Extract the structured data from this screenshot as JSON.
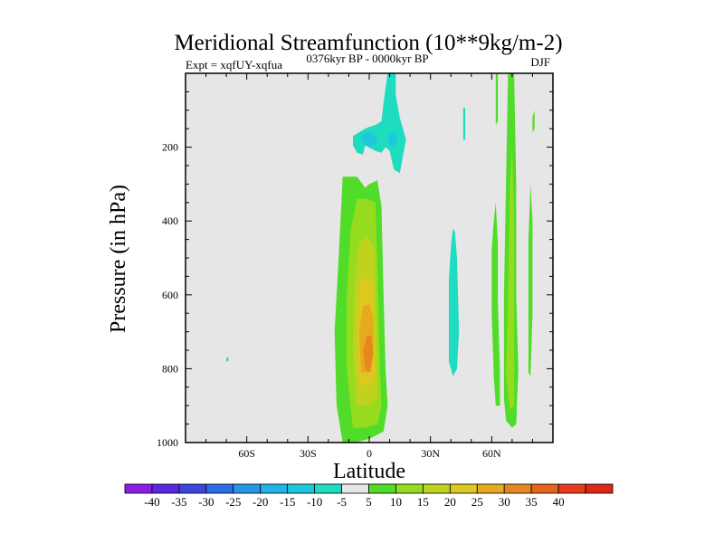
{
  "chart_data": {
    "type": "filled-contour",
    "title": "Meridional Streamfunction (10**9kg/m-2)",
    "subtitle_left": "Expt = xqfUY-xqfua",
    "subtitle_center": "0376kyr BP - 0000kyr BP",
    "subtitle_right": "DJF",
    "xlabel": "Latitude",
    "ylabel": "Pressure (in hPa)",
    "x_range": [
      -90,
      90
    ],
    "y_range": [
      0,
      1000
    ],
    "y_inverted": true,
    "x_ticks": [
      {
        "value": -60,
        "label": "60S"
      },
      {
        "value": -30,
        "label": "30S"
      },
      {
        "value": 0,
        "label": "0"
      },
      {
        "value": 30,
        "label": "30N"
      },
      {
        "value": 60,
        "label": "60N"
      }
    ],
    "y_ticks": [
      {
        "value": 200,
        "label": "200"
      },
      {
        "value": 400,
        "label": "400"
      },
      {
        "value": 600,
        "label": "600"
      },
      {
        "value": 800,
        "label": "800"
      },
      {
        "value": 1000,
        "label": "1000"
      }
    ],
    "background_color": "#e6e6e6",
    "colorbar": {
      "colors": [
        "#8a1ee6",
        "#5a28e0",
        "#3c46dc",
        "#2a6ee6",
        "#2896e6",
        "#1eb4e6",
        "#1ec8dc",
        "#1edcc0",
        "#e6e6e6",
        "#50dc28",
        "#96dc1e",
        "#bed21e",
        "#dcc81e",
        "#e6aa1e",
        "#e6881e",
        "#e6641e",
        "#e63c1e",
        "#dc2814"
      ],
      "labels": [
        "-40",
        "-35",
        "-30",
        "-25",
        "-20",
        "-15",
        "-10",
        "-5",
        "5",
        "10",
        "15",
        "20",
        "25",
        "30",
        "35",
        "40"
      ]
    },
    "regions": [
      {
        "level": 5,
        "color": "#50dc28",
        "points": [
          [
            -13,
            1000
          ],
          [
            -16,
            900
          ],
          [
            -17,
            700
          ],
          [
            -15,
            500
          ],
          [
            -13,
            280
          ],
          [
            -6,
            280
          ],
          [
            -2,
            310
          ],
          [
            0,
            300
          ],
          [
            4,
            290
          ],
          [
            6,
            360
          ],
          [
            7,
            600
          ],
          [
            8,
            800
          ],
          [
            9,
            900
          ],
          [
            7,
            970
          ],
          [
            0,
            990
          ],
          [
            -7,
            1000
          ]
        ]
      },
      {
        "level": 10,
        "color": "#96dc1e",
        "points": [
          [
            -8,
            960
          ],
          [
            -11,
            800
          ],
          [
            -11,
            600
          ],
          [
            -9,
            420
          ],
          [
            -6,
            340
          ],
          [
            -1,
            340
          ],
          [
            3,
            350
          ],
          [
            4,
            520
          ],
          [
            5,
            750
          ],
          [
            6,
            900
          ],
          [
            4,
            950
          ],
          [
            -2,
            960
          ]
        ]
      },
      {
        "level": 15,
        "color": "#bed21e",
        "points": [
          [
            -6,
            900
          ],
          [
            -8,
            750
          ],
          [
            -7,
            560
          ],
          [
            -5,
            460
          ],
          [
            -1,
            440
          ],
          [
            3,
            480
          ],
          [
            3,
            600
          ],
          [
            4,
            800
          ],
          [
            4,
            880
          ],
          [
            0,
            900
          ]
        ]
      },
      {
        "level": 20,
        "color": "#dcc81e",
        "points": [
          [
            -5,
            840
          ],
          [
            -6,
            700
          ],
          [
            -5,
            580
          ],
          [
            -2,
            545
          ],
          [
            2,
            570
          ],
          [
            2,
            700
          ],
          [
            3,
            820
          ],
          [
            0,
            850
          ]
        ]
      },
      {
        "level": 25,
        "color": "#e6aa1e",
        "points": [
          [
            -4,
            810
          ],
          [
            -5,
            700
          ],
          [
            -3,
            630
          ],
          [
            0,
            625
          ],
          [
            2,
            660
          ],
          [
            2,
            760
          ],
          [
            1,
            810
          ]
        ]
      },
      {
        "level": 30,
        "color": "#e6881e",
        "points": [
          [
            -2,
            800
          ],
          [
            -3,
            750
          ],
          [
            -1,
            710
          ],
          [
            1,
            710
          ],
          [
            2,
            760
          ],
          [
            0,
            810
          ]
        ]
      },
      {
        "level": -5,
        "color": "#1edcc0",
        "points": [
          [
            -8,
            170
          ],
          [
            -5,
            160
          ],
          [
            -2,
            150
          ],
          [
            0,
            145
          ],
          [
            3,
            140
          ],
          [
            6,
            130
          ],
          [
            7,
            80
          ],
          [
            9,
            0
          ],
          [
            13,
            0
          ],
          [
            13,
            60
          ],
          [
            15,
            120
          ],
          [
            18,
            180
          ],
          [
            15,
            270
          ],
          [
            12,
            260
          ],
          [
            10,
            210
          ],
          [
            8,
            200
          ],
          [
            6,
            215
          ],
          [
            3,
            210
          ],
          [
            -2,
            195
          ],
          [
            -3,
            220
          ],
          [
            -6,
            215
          ],
          [
            -8,
            195
          ]
        ]
      },
      {
        "level": -10,
        "color": "#1ec8dc",
        "points": [
          [
            -4,
            170
          ],
          [
            0,
            155
          ],
          [
            3,
            170
          ],
          [
            4,
            190
          ],
          [
            0,
            200
          ],
          [
            -3,
            190
          ]
        ]
      },
      {
        "level": -10,
        "color": "#1ec8dc",
        "points": [
          [
            9,
            170
          ],
          [
            12,
            160
          ],
          [
            14,
            175
          ],
          [
            12,
            200
          ],
          [
            10,
            195
          ]
        ]
      },
      {
        "level": -5,
        "color": "#1edcc0",
        "points": [
          [
            39,
            560
          ],
          [
            40,
            470
          ],
          [
            41,
            420
          ],
          [
            42,
            430
          ],
          [
            43,
            500
          ],
          [
            44,
            700
          ],
          [
            43,
            800
          ],
          [
            41,
            820
          ],
          [
            39,
            780
          ]
        ]
      },
      {
        "level": -5,
        "color": "#1edcc0",
        "points": [
          [
            46,
            95
          ],
          [
            47,
            92
          ],
          [
            47,
            180
          ],
          [
            46,
            180
          ]
        ]
      },
      {
        "level": -5,
        "color": "#1edcc0",
        "points": [
          [
            -70,
            770
          ],
          [
            -69,
            770
          ],
          [
            -69,
            780
          ],
          [
            -70,
            780
          ]
        ]
      },
      {
        "level": 5,
        "color": "#50dc28",
        "points": [
          [
            62,
            0
          ],
          [
            63,
            0
          ],
          [
            63,
            130
          ],
          [
            62,
            140
          ]
        ]
      },
      {
        "level": 5,
        "color": "#50dc28",
        "points": [
          [
            60,
            480
          ],
          [
            61,
            400
          ],
          [
            62,
            350
          ],
          [
            63,
            460
          ],
          [
            63,
            620
          ],
          [
            64,
            800
          ],
          [
            64,
            900
          ],
          [
            62,
            900
          ],
          [
            61,
            820
          ],
          [
            60,
            650
          ]
        ]
      },
      {
        "level": 5,
        "color": "#50dc28",
        "points": [
          [
            66,
            880
          ],
          [
            66,
            600
          ],
          [
            67,
            300
          ],
          [
            68,
            0
          ],
          [
            71,
            0
          ],
          [
            72,
            300
          ],
          [
            72,
            600
          ],
          [
            73,
            800
          ],
          [
            72,
            950
          ],
          [
            70,
            960
          ],
          [
            67,
            940
          ]
        ]
      },
      {
        "level": 10,
        "color": "#96dc1e",
        "points": [
          [
            67,
            820
          ],
          [
            68,
            600
          ],
          [
            69,
            300
          ],
          [
            70,
            200
          ],
          [
            71,
            400
          ],
          [
            71,
            700
          ],
          [
            71,
            900
          ],
          [
            69,
            910
          ]
        ]
      },
      {
        "level": 5,
        "color": "#50dc28",
        "points": [
          [
            79,
            300
          ],
          [
            80,
            400
          ],
          [
            80,
            650
          ],
          [
            79,
            820
          ],
          [
            78,
            810
          ],
          [
            78,
            600
          ],
          [
            78,
            450
          ]
        ]
      },
      {
        "level": 5,
        "color": "#50dc28",
        "points": [
          [
            80,
            120
          ],
          [
            81,
            100
          ],
          [
            81,
            150
          ],
          [
            80,
            160
          ]
        ]
      }
    ]
  }
}
